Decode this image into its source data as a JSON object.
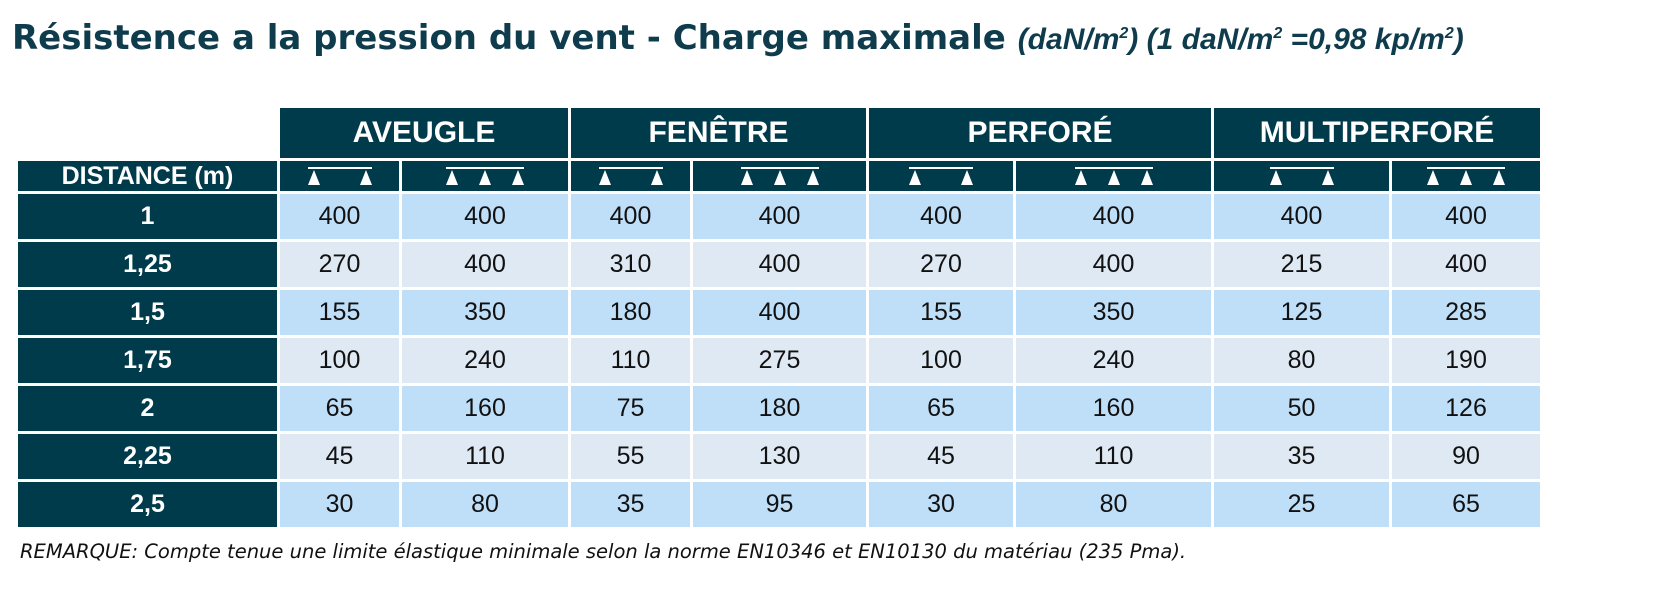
{
  "title": {
    "main": "Résistence a la pression du vent - Charge maximale",
    "unit_part1": "(daN/m",
    "unit_sup1": "2",
    "unit_part2": ") (1 daN/m",
    "unit_sup2": "2",
    "unit_part3": " =0,98 kp/m",
    "unit_sup3": "2",
    "unit_part4": ")"
  },
  "table": {
    "distance_header": "DISTANCE (m)",
    "groups": [
      "AVEUGLE",
      "FENÊTRE",
      "PERFORÉ",
      "MULTIPERFORÉ"
    ],
    "support_icons": [
      "two-support-beam-icon",
      "three-support-beam-icon"
    ],
    "rows": [
      {
        "distance": "1",
        "values": [
          "400",
          "400",
          "400",
          "400",
          "400",
          "400",
          "400",
          "400"
        ]
      },
      {
        "distance": "1,25",
        "values": [
          "270",
          "400",
          "310",
          "400",
          "270",
          "400",
          "215",
          "400"
        ]
      },
      {
        "distance": "1,5",
        "values": [
          "155",
          "350",
          "180",
          "400",
          "155",
          "350",
          "125",
          "285"
        ]
      },
      {
        "distance": "1,75",
        "values": [
          "100",
          "240",
          "110",
          "275",
          "100",
          "240",
          "80",
          "190"
        ]
      },
      {
        "distance": "2",
        "values": [
          "65",
          "160",
          "75",
          "180",
          "65",
          "160",
          "50",
          "126"
        ]
      },
      {
        "distance": "2,25",
        "values": [
          "45",
          "110",
          "55",
          "130",
          "45",
          "110",
          "35",
          "90"
        ]
      },
      {
        "distance": "2,5",
        "values": [
          "30",
          "80",
          "35",
          "95",
          "30",
          "80",
          "25",
          "65"
        ]
      }
    ]
  },
  "remark": "REMARQUE: Compte tenue une limite élastique minimale selon la norme EN10346 et EN10130 du matériau (235 Pma).",
  "colors": {
    "header_dark": "#003b4c",
    "title": "#0e3c4c",
    "row_light_blue": "#bfdff9",
    "row_pale_blue": "#dfe9f4"
  }
}
